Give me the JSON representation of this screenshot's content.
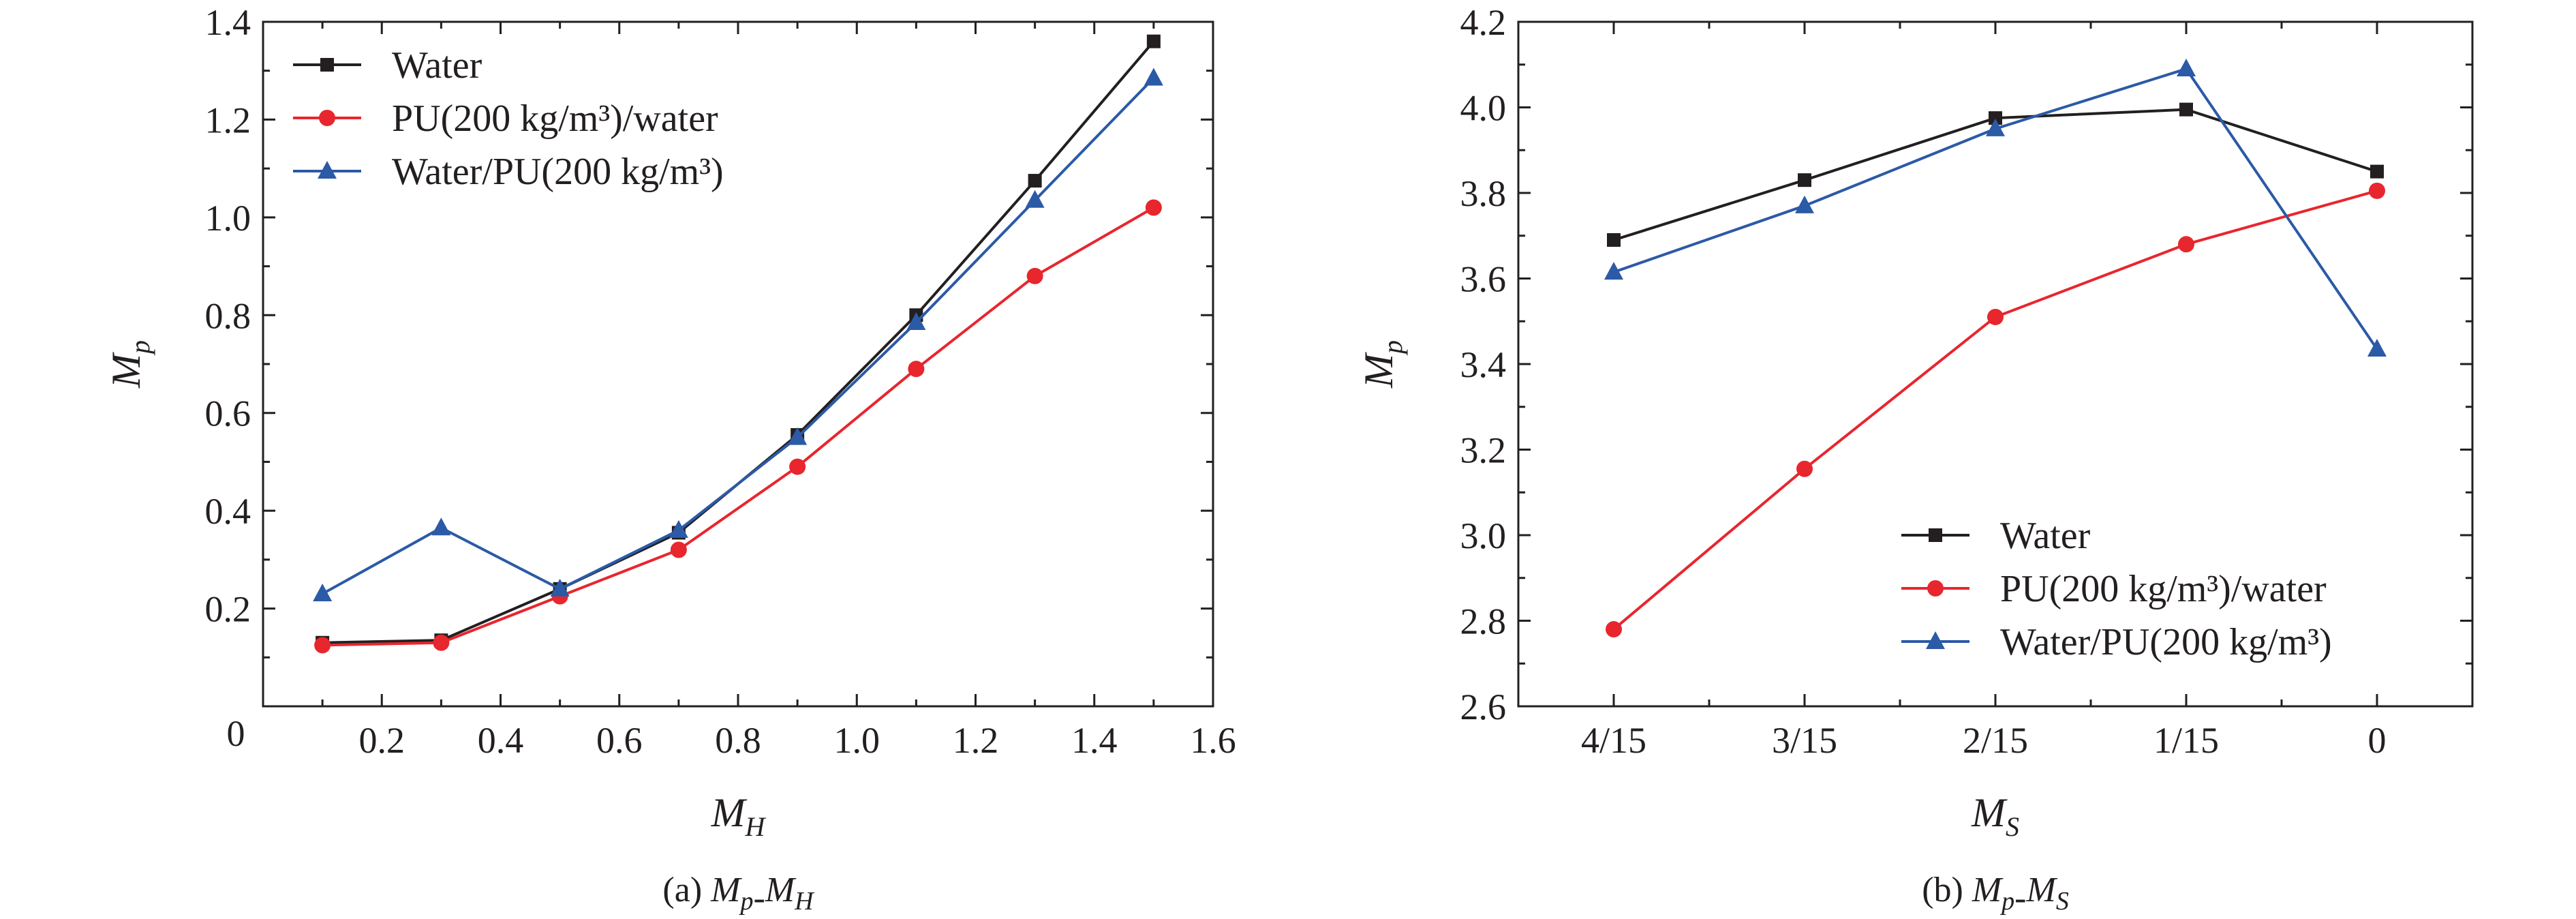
{
  "chart_data": [
    {
      "type": "line",
      "panel": "a",
      "caption": {
        "prefix": "(a) ",
        "parts": [
          [
            "M",
            "p"
          ],
          [
            "-",
            ""
          ],
          [
            "M",
            "H"
          ]
        ]
      },
      "xlabel": {
        "main": "M",
        "sub": "H"
      },
      "ylabel": {
        "main": "M",
        "sub": "p"
      },
      "xlim": [
        0,
        1.6
      ],
      "ylim": [
        0,
        1.4
      ],
      "xticks": [
        0.2,
        0.4,
        0.6,
        0.8,
        1.0,
        1.2,
        1.4,
        1.6
      ],
      "xtick_labels": [
        "0.2",
        "0.4",
        "0.6",
        "0.8",
        "1.0",
        "1.2",
        "1.4",
        "1.6"
      ],
      "yticks": [
        0.2,
        0.4,
        0.6,
        0.8,
        1.0,
        1.2,
        1.4
      ],
      "ytick_labels": [
        "0.2",
        "0.4",
        "0.6",
        "0.8",
        "1.0",
        "1.2",
        "1.4"
      ],
      "origin_label": "0",
      "legend_position": "top-left",
      "x": [
        0.1,
        0.3,
        0.5,
        0.7,
        0.9,
        1.1,
        1.3,
        1.5
      ],
      "series": [
        {
          "name": "Water",
          "color": "#231f20",
          "marker": "square",
          "values": [
            0.13,
            0.135,
            0.24,
            0.355,
            0.555,
            0.8,
            1.075,
            1.36
          ]
        },
        {
          "name": "PU(200 kg/m³)/water",
          "color": "#e8262e",
          "marker": "circle",
          "values": [
            0.125,
            0.13,
            0.225,
            0.32,
            0.49,
            0.69,
            0.88,
            1.02
          ]
        },
        {
          "name": "Water/PU(200 kg/m³)",
          "color": "#2b5aa6",
          "marker": "triangle",
          "values": [
            0.23,
            0.365,
            0.24,
            0.36,
            0.55,
            0.785,
            1.035,
            1.285
          ]
        }
      ]
    },
    {
      "type": "line",
      "panel": "b",
      "caption": {
        "prefix": "(b) ",
        "parts": [
          [
            "M",
            "p"
          ],
          [
            "-",
            ""
          ],
          [
            "M",
            "S"
          ]
        ]
      },
      "xlabel": {
        "main": "M",
        "sub": "S"
      },
      "ylabel": {
        "main": "M",
        "sub": "p"
      },
      "categories": [
        "4/15",
        "3/15",
        "2/15",
        "1/15",
        "0"
      ],
      "ylim": [
        2.6,
        4.2
      ],
      "yticks": [
        2.6,
        2.8,
        3.0,
        3.2,
        3.4,
        3.6,
        3.8,
        4.0,
        4.2
      ],
      "ytick_labels": [
        "2.6",
        "2.8",
        "3.0",
        "3.2",
        "3.4",
        "3.6",
        "3.8",
        "4.0",
        "4.2"
      ],
      "legend_position": "bottom-right",
      "series": [
        {
          "name": "Water",
          "color": "#231f20",
          "marker": "square",
          "values": [
            3.69,
            3.83,
            3.975,
            3.995,
            3.85
          ]
        },
        {
          "name": "PU(200 kg/m³)/water",
          "color": "#e8262e",
          "marker": "circle",
          "values": [
            2.78,
            3.155,
            3.51,
            3.68,
            3.805
          ]
        },
        {
          "name": "Water/PU(200 kg/m³)",
          "color": "#2b5aa6",
          "marker": "triangle",
          "values": [
            3.615,
            3.77,
            3.95,
            4.09,
            3.435
          ]
        }
      ]
    }
  ]
}
